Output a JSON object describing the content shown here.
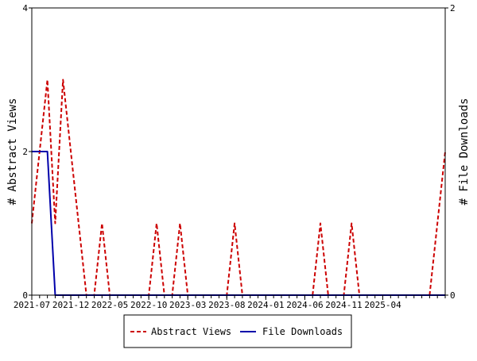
{
  "chart_data": {
    "type": "line",
    "title": "",
    "xlabel": "",
    "ylabel_left": "# Abstract Views",
    "ylabel_right": "# File Downloads",
    "ylim_left": [
      0,
      4
    ],
    "ylim_right": [
      0,
      2
    ],
    "yticks_left": [
      "0",
      "2",
      "4"
    ],
    "yticks_right": [
      "0",
      "2"
    ],
    "xlim": [
      "2021-07",
      "2025-12"
    ],
    "xtick_labels": [
      "2021-07",
      "2021-12",
      "2022-05",
      "2022-10",
      "2023-03",
      "2023-08",
      "2024-01",
      "2024-06",
      "2024-11",
      "2025-04"
    ],
    "legend_position": "bottom-center",
    "grid": false,
    "series": [
      {
        "name": "Abstract Views",
        "axis": "left",
        "color": "#cc0000",
        "style": "dashed",
        "points": [
          [
            "2021-07",
            1
          ],
          [
            "2021-08",
            2
          ],
          [
            "2021-09",
            3
          ],
          [
            "2021-10",
            1
          ],
          [
            "2021-11",
            3
          ],
          [
            "2021-12",
            2
          ],
          [
            "2022-01",
            1
          ],
          [
            "2022-02",
            0
          ],
          [
            "2022-03",
            0
          ],
          [
            "2022-04",
            1
          ],
          [
            "2022-05",
            0
          ],
          [
            "2022-06",
            0
          ],
          [
            "2022-07",
            0
          ],
          [
            "2022-08",
            0
          ],
          [
            "2022-09",
            0
          ],
          [
            "2022-10",
            0
          ],
          [
            "2022-11",
            1
          ],
          [
            "2022-12",
            0
          ],
          [
            "2023-01",
            0
          ],
          [
            "2023-02",
            1
          ],
          [
            "2023-03",
            0
          ],
          [
            "2023-04",
            0
          ],
          [
            "2023-05",
            0
          ],
          [
            "2023-06",
            0
          ],
          [
            "2023-07",
            0
          ],
          [
            "2023-08",
            0
          ],
          [
            "2023-09",
            1
          ],
          [
            "2023-10",
            0
          ],
          [
            "2023-11",
            0
          ],
          [
            "2023-12",
            0
          ],
          [
            "2024-01",
            0
          ],
          [
            "2024-02",
            0
          ],
          [
            "2024-03",
            0
          ],
          [
            "2024-04",
            0
          ],
          [
            "2024-05",
            0
          ],
          [
            "2024-06",
            0
          ],
          [
            "2024-07",
            0
          ],
          [
            "2024-08",
            1
          ],
          [
            "2024-09",
            0
          ],
          [
            "2024-10",
            0
          ],
          [
            "2024-11",
            0
          ],
          [
            "2024-12",
            1
          ],
          [
            "2025-01",
            0
          ],
          [
            "2025-02",
            0
          ],
          [
            "2025-03",
            0
          ],
          [
            "2025-04",
            0
          ],
          [
            "2025-05",
            0
          ],
          [
            "2025-06",
            0
          ],
          [
            "2025-07",
            0
          ],
          [
            "2025-08",
            0
          ],
          [
            "2025-09",
            0
          ],
          [
            "2025-10",
            0
          ],
          [
            "2025-11",
            1
          ],
          [
            "2025-12",
            2
          ]
        ]
      },
      {
        "name": "File Downloads",
        "axis": "right",
        "color": "#0000aa",
        "style": "solid",
        "points": [
          [
            "2021-07",
            1
          ],
          [
            "2021-08",
            1
          ],
          [
            "2021-09",
            1
          ],
          [
            "2021-10",
            0
          ],
          [
            "2021-11",
            0
          ],
          [
            "2021-12",
            0
          ],
          [
            "2022-01",
            0
          ],
          [
            "2022-02",
            0
          ],
          [
            "2022-03",
            0
          ],
          [
            "2022-04",
            0
          ],
          [
            "2022-05",
            0
          ],
          [
            "2022-06",
            0
          ],
          [
            "2022-07",
            0
          ],
          [
            "2022-08",
            0
          ],
          [
            "2022-09",
            0
          ],
          [
            "2022-10",
            0
          ],
          [
            "2022-11",
            0
          ],
          [
            "2022-12",
            0
          ],
          [
            "2023-01",
            0
          ],
          [
            "2023-02",
            0
          ],
          [
            "2023-03",
            0
          ],
          [
            "2023-04",
            0
          ],
          [
            "2023-05",
            0
          ],
          [
            "2023-06",
            0
          ],
          [
            "2023-07",
            0
          ],
          [
            "2023-08",
            0
          ],
          [
            "2023-09",
            0
          ],
          [
            "2023-10",
            0
          ],
          [
            "2023-11",
            0
          ],
          [
            "2023-12",
            0
          ],
          [
            "2024-01",
            0
          ],
          [
            "2024-02",
            0
          ],
          [
            "2024-03",
            0
          ],
          [
            "2024-04",
            0
          ],
          [
            "2024-05",
            0
          ],
          [
            "2024-06",
            0
          ],
          [
            "2024-07",
            0
          ],
          [
            "2024-08",
            0
          ],
          [
            "2024-09",
            0
          ],
          [
            "2024-10",
            0
          ],
          [
            "2024-11",
            0
          ],
          [
            "2024-12",
            0
          ],
          [
            "2025-01",
            0
          ],
          [
            "2025-02",
            0
          ],
          [
            "2025-03",
            0
          ],
          [
            "2025-04",
            0
          ],
          [
            "2025-05",
            0
          ],
          [
            "2025-06",
            0
          ],
          [
            "2025-07",
            0
          ],
          [
            "2025-08",
            0
          ],
          [
            "2025-09",
            0
          ],
          [
            "2025-10",
            0
          ],
          [
            "2025-11",
            0
          ],
          [
            "2025-12",
            0
          ]
        ]
      }
    ]
  }
}
